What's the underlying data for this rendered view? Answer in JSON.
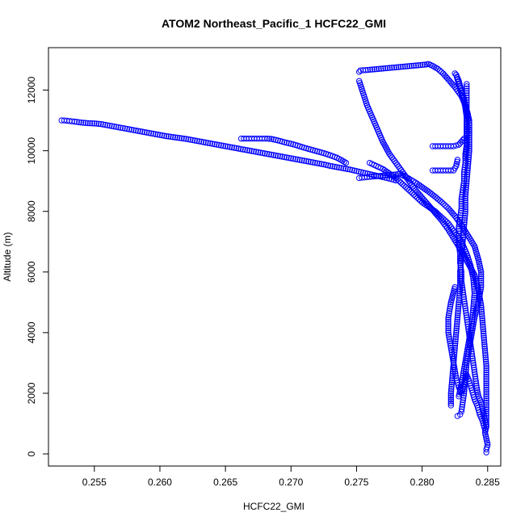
{
  "chart_data": {
    "type": "scatter",
    "title": "ATOM2 Northeast_Pacific_1 HCFC22_GMI",
    "xlabel": "HCFC22_GMI",
    "ylabel": "Altitude (m)",
    "xlim": [
      0.2515,
      0.286
    ],
    "ylim": [
      -400,
      13400
    ],
    "xticks": [
      0.255,
      0.26,
      0.265,
      0.27,
      0.275,
      0.28,
      0.285
    ],
    "xtick_labels": [
      "0.255",
      "0.260",
      "0.265",
      "0.270",
      "0.275",
      "0.280",
      "0.285"
    ],
    "yticks": [
      0,
      2000,
      4000,
      6000,
      8000,
      10000,
      12000
    ],
    "ytick_labels": [
      "0",
      "2000",
      "4000",
      "6000",
      "8000",
      "10000",
      "12000"
    ],
    "grid": false,
    "legend": "none",
    "marker": "open-circle",
    "color": "#0000ff",
    "series": [
      {
        "points": [
          [
            0.2849,
            50
          ],
          [
            0.2849,
            150
          ],
          [
            0.285,
            300
          ],
          [
            0.2849,
            500
          ],
          [
            0.2848,
            700
          ],
          [
            0.2849,
            900
          ],
          [
            0.2848,
            1100
          ],
          [
            0.2847,
            1300
          ],
          [
            0.2846,
            1500
          ],
          [
            0.2845,
            1700
          ],
          [
            0.2843,
            1900
          ],
          [
            0.2842,
            2100
          ],
          [
            0.2841,
            2400
          ],
          [
            0.284,
            2700
          ],
          [
            0.2839,
            3000
          ],
          [
            0.2838,
            3300
          ],
          [
            0.2837,
            3600
          ],
          [
            0.2836,
            3900
          ],
          [
            0.2835,
            4200
          ],
          [
            0.2834,
            4500
          ],
          [
            0.2833,
            4800
          ],
          [
            0.2832,
            5100
          ],
          [
            0.2831,
            5400
          ],
          [
            0.283,
            5700
          ],
          [
            0.283,
            6000
          ],
          [
            0.2829,
            6300
          ],
          [
            0.2829,
            6600
          ],
          [
            0.2828,
            6900
          ],
          [
            0.2828,
            7200
          ],
          [
            0.2828,
            7500
          ],
          [
            0.2829,
            7800
          ],
          [
            0.283,
            8100
          ],
          [
            0.283,
            8400
          ],
          [
            0.2831,
            8700
          ],
          [
            0.2832,
            9000
          ],
          [
            0.2832,
            9300
          ],
          [
            0.2833,
            9600
          ],
          [
            0.2833,
            9900
          ],
          [
            0.2834,
            10200
          ],
          [
            0.2834,
            10500
          ],
          [
            0.2834,
            10800
          ],
          [
            0.2834,
            11100
          ],
          [
            0.2833,
            11400
          ],
          [
            0.2832,
            11700
          ],
          [
            0.283,
            12000
          ],
          [
            0.2828,
            12300
          ],
          [
            0.2826,
            12500
          ],
          [
            0.2825,
            12550
          ]
        ]
      },
      {
        "points": [
          [
            0.2525,
            11000
          ],
          [
            0.2527,
            11000
          ],
          [
            0.2529,
            10990
          ],
          [
            0.2531,
            10980
          ],
          [
            0.2535,
            10960
          ],
          [
            0.254,
            10930
          ],
          [
            0.2545,
            10910
          ],
          [
            0.255,
            10900
          ],
          [
            0.2555,
            10880
          ],
          [
            0.256,
            10840
          ],
          [
            0.2565,
            10800
          ],
          [
            0.257,
            10760
          ],
          [
            0.2575,
            10720
          ],
          [
            0.258,
            10680
          ],
          [
            0.2585,
            10640
          ],
          [
            0.259,
            10600
          ],
          [
            0.2595,
            10560
          ],
          [
            0.26,
            10520
          ],
          [
            0.2605,
            10480
          ],
          [
            0.261,
            10450
          ],
          [
            0.2615,
            10420
          ],
          [
            0.262,
            10390
          ],
          [
            0.2625,
            10350
          ],
          [
            0.263,
            10310
          ],
          [
            0.2635,
            10270
          ],
          [
            0.264,
            10230
          ],
          [
            0.2645,
            10190
          ],
          [
            0.265,
            10150
          ],
          [
            0.2655,
            10110
          ],
          [
            0.266,
            10070
          ],
          [
            0.2665,
            10030
          ],
          [
            0.267,
            9990
          ],
          [
            0.2675,
            9950
          ],
          [
            0.268,
            9910
          ],
          [
            0.2685,
            9870
          ],
          [
            0.269,
            9830
          ],
          [
            0.2695,
            9790
          ],
          [
            0.27,
            9750
          ],
          [
            0.2705,
            9710
          ],
          [
            0.271,
            9670
          ],
          [
            0.2715,
            9630
          ],
          [
            0.272,
            9590
          ],
          [
            0.2725,
            9550
          ],
          [
            0.273,
            9500
          ],
          [
            0.2735,
            9460
          ],
          [
            0.274,
            9420
          ],
          [
            0.2745,
            9380
          ],
          [
            0.275,
            9330
          ],
          [
            0.2755,
            9280
          ],
          [
            0.276,
            9230
          ],
          [
            0.2765,
            9180
          ],
          [
            0.277,
            9130
          ],
          [
            0.2775,
            9080
          ],
          [
            0.278,
            9020
          ]
        ]
      },
      {
        "points": [
          [
            0.2662,
            10400
          ],
          [
            0.2666,
            10400
          ],
          [
            0.267,
            10400
          ],
          [
            0.2674,
            10400
          ],
          [
            0.2678,
            10400
          ],
          [
            0.2682,
            10400
          ],
          [
            0.2685,
            10390
          ],
          [
            0.269,
            10340
          ],
          [
            0.2695,
            10280
          ],
          [
            0.27,
            10230
          ],
          [
            0.2705,
            10170
          ],
          [
            0.271,
            10100
          ],
          [
            0.2715,
            10040
          ],
          [
            0.272,
            9980
          ],
          [
            0.2725,
            9920
          ],
          [
            0.273,
            9850
          ],
          [
            0.2735,
            9770
          ],
          [
            0.2738,
            9700
          ],
          [
            0.2742,
            9600
          ]
        ]
      },
      {
        "points": [
          [
            0.2752,
            9100
          ],
          [
            0.2756,
            9120
          ],
          [
            0.276,
            9140
          ],
          [
            0.2765,
            9160
          ],
          [
            0.277,
            9180
          ],
          [
            0.2775,
            9200
          ],
          [
            0.278,
            9220
          ],
          [
            0.2783,
            9240
          ],
          [
            0.279,
            9080
          ],
          [
            0.2795,
            8950
          ],
          [
            0.28,
            8800
          ],
          [
            0.2805,
            8650
          ],
          [
            0.281,
            8480
          ],
          [
            0.2815,
            8300
          ],
          [
            0.282,
            8100
          ],
          [
            0.2825,
            7850
          ],
          [
            0.283,
            7550
          ],
          [
            0.2835,
            7200
          ],
          [
            0.284,
            6850
          ],
          [
            0.2843,
            6400
          ],
          [
            0.2845,
            6000
          ],
          [
            0.2845,
            5500
          ],
          [
            0.2843,
            5000
          ],
          [
            0.284,
            4500
          ],
          [
            0.2838,
            4000
          ],
          [
            0.2836,
            3500
          ],
          [
            0.2834,
            3000
          ],
          [
            0.2833,
            2500
          ],
          [
            0.2832,
            2000
          ],
          [
            0.2831,
            1700
          ],
          [
            0.283,
            1400
          ],
          [
            0.2829,
            1300
          ],
          [
            0.2827,
            1250
          ]
        ]
      },
      {
        "points": [
          [
            0.2752,
            12600
          ],
          [
            0.2753,
            12650
          ],
          [
            0.2757,
            12660
          ],
          [
            0.2762,
            12680
          ],
          [
            0.2767,
            12700
          ],
          [
            0.2772,
            12720
          ],
          [
            0.2777,
            12740
          ],
          [
            0.2782,
            12760
          ],
          [
            0.2787,
            12780
          ],
          [
            0.2792,
            12800
          ],
          [
            0.2797,
            12820
          ],
          [
            0.2802,
            12840
          ],
          [
            0.2805,
            12860
          ],
          [
            0.2808,
            12800
          ],
          [
            0.2812,
            12700
          ],
          [
            0.2816,
            12550
          ],
          [
            0.282,
            12350
          ],
          [
            0.2825,
            12100
          ],
          [
            0.283,
            11800
          ],
          [
            0.2833,
            11500
          ],
          [
            0.2835,
            11200
          ],
          [
            0.2836,
            10900
          ],
          [
            0.2836,
            10500
          ],
          [
            0.2836,
            10000
          ],
          [
            0.2835,
            9500
          ],
          [
            0.2834,
            9000
          ],
          [
            0.2833,
            8500
          ],
          [
            0.2833,
            8000
          ],
          [
            0.2832,
            7500
          ],
          [
            0.2831,
            7000
          ],
          [
            0.283,
            6500
          ],
          [
            0.2829,
            6000
          ],
          [
            0.2829,
            5500
          ],
          [
            0.2828,
            5000
          ],
          [
            0.2827,
            4500
          ],
          [
            0.2826,
            4000
          ],
          [
            0.2825,
            3500
          ],
          [
            0.2824,
            3000
          ],
          [
            0.2823,
            2500
          ],
          [
            0.2822,
            2000
          ],
          [
            0.2822,
            1600
          ]
        ]
      },
      {
        "points": [
          [
            0.2752,
            12300
          ],
          [
            0.2755,
            11900
          ],
          [
            0.2758,
            11500
          ],
          [
            0.2762,
            11100
          ],
          [
            0.2766,
            10700
          ],
          [
            0.277,
            10300
          ],
          [
            0.2775,
            9900
          ],
          [
            0.278,
            9600
          ],
          [
            0.2785,
            9300
          ],
          [
            0.279,
            9000
          ],
          [
            0.2795,
            8700
          ],
          [
            0.28,
            8450
          ],
          [
            0.2805,
            8200
          ],
          [
            0.281,
            7950
          ],
          [
            0.2815,
            7700
          ],
          [
            0.282,
            7400
          ],
          [
            0.2825,
            7050
          ],
          [
            0.283,
            6700
          ],
          [
            0.2835,
            6300
          ],
          [
            0.284,
            5900
          ],
          [
            0.2843,
            5400
          ],
          [
            0.2845,
            4900
          ],
          [
            0.2846,
            4400
          ],
          [
            0.2847,
            3900
          ],
          [
            0.2848,
            3400
          ],
          [
            0.2849,
            2900
          ],
          [
            0.2849,
            2400
          ],
          [
            0.2849,
            1900
          ],
          [
            0.2849,
            1400
          ],
          [
            0.2849,
            900
          ]
        ]
      },
      {
        "points": [
          [
            0.276,
            9600
          ],
          [
            0.2765,
            9500
          ],
          [
            0.277,
            9400
          ],
          [
            0.2775,
            9250
          ],
          [
            0.278,
            9100
          ],
          [
            0.2785,
            8900
          ],
          [
            0.279,
            8700
          ],
          [
            0.2795,
            8500
          ],
          [
            0.28,
            8300
          ],
          [
            0.2805,
            8150
          ],
          [
            0.281,
            8000
          ],
          [
            0.2815,
            7800
          ],
          [
            0.282,
            7600
          ],
          [
            0.2825,
            7300
          ],
          [
            0.283,
            7000
          ],
          [
            0.2834,
            6600
          ],
          [
            0.2837,
            6200
          ],
          [
            0.2839,
            5800
          ],
          [
            0.284,
            5300
          ],
          [
            0.2839,
            4800
          ],
          [
            0.2838,
            4300
          ],
          [
            0.2836,
            3800
          ],
          [
            0.2834,
            3300
          ],
          [
            0.2832,
            2800
          ],
          [
            0.283,
            2300
          ],
          [
            0.2828,
            1900
          ]
        ]
      },
      {
        "points": [
          [
            0.2808,
            10150
          ],
          [
            0.2812,
            10150
          ],
          [
            0.2816,
            10150
          ],
          [
            0.282,
            10150
          ],
          [
            0.2824,
            10150
          ],
          [
            0.2828,
            10200
          ],
          [
            0.283,
            10300
          ],
          [
            0.2832,
            10400
          ]
        ]
      },
      {
        "points": [
          [
            0.2808,
            9350
          ],
          [
            0.2812,
            9350
          ],
          [
            0.2816,
            9350
          ],
          [
            0.282,
            9350
          ],
          [
            0.2824,
            9350
          ],
          [
            0.2826,
            9500
          ],
          [
            0.2827,
            9700
          ]
        ]
      },
      {
        "points": [
          [
            0.2834,
            12200
          ],
          [
            0.2834,
            11900
          ],
          [
            0.2834,
            11600
          ],
          [
            0.2834,
            11300
          ],
          [
            0.2834,
            11000
          ],
          [
            0.2834,
            10700
          ],
          [
            0.2834,
            10400
          ],
          [
            0.2834,
            10100
          ],
          [
            0.2833,
            9800
          ]
        ]
      },
      {
        "points": [
          [
            0.2826,
            12500
          ],
          [
            0.2828,
            12200
          ],
          [
            0.283,
            11900
          ],
          [
            0.2832,
            11600
          ],
          [
            0.2834,
            11300
          ],
          [
            0.2836,
            11000
          ]
        ]
      },
      {
        "points": [
          [
            0.2825,
            5500
          ],
          [
            0.2822,
            5000
          ],
          [
            0.282,
            4500
          ],
          [
            0.282,
            4000
          ],
          [
            0.2822,
            3500
          ],
          [
            0.2824,
            3000
          ],
          [
            0.2826,
            2500
          ],
          [
            0.2828,
            2200
          ],
          [
            0.283,
            2000
          ],
          [
            0.2832,
            2300
          ],
          [
            0.2834,
            2600
          ],
          [
            0.2836,
            2400
          ],
          [
            0.2838,
            2100
          ],
          [
            0.284,
            1800
          ],
          [
            0.2842,
            1600
          ],
          [
            0.2844,
            1300
          ],
          [
            0.2846,
            1100
          ],
          [
            0.2848,
            800
          ]
        ]
      }
    ]
  }
}
